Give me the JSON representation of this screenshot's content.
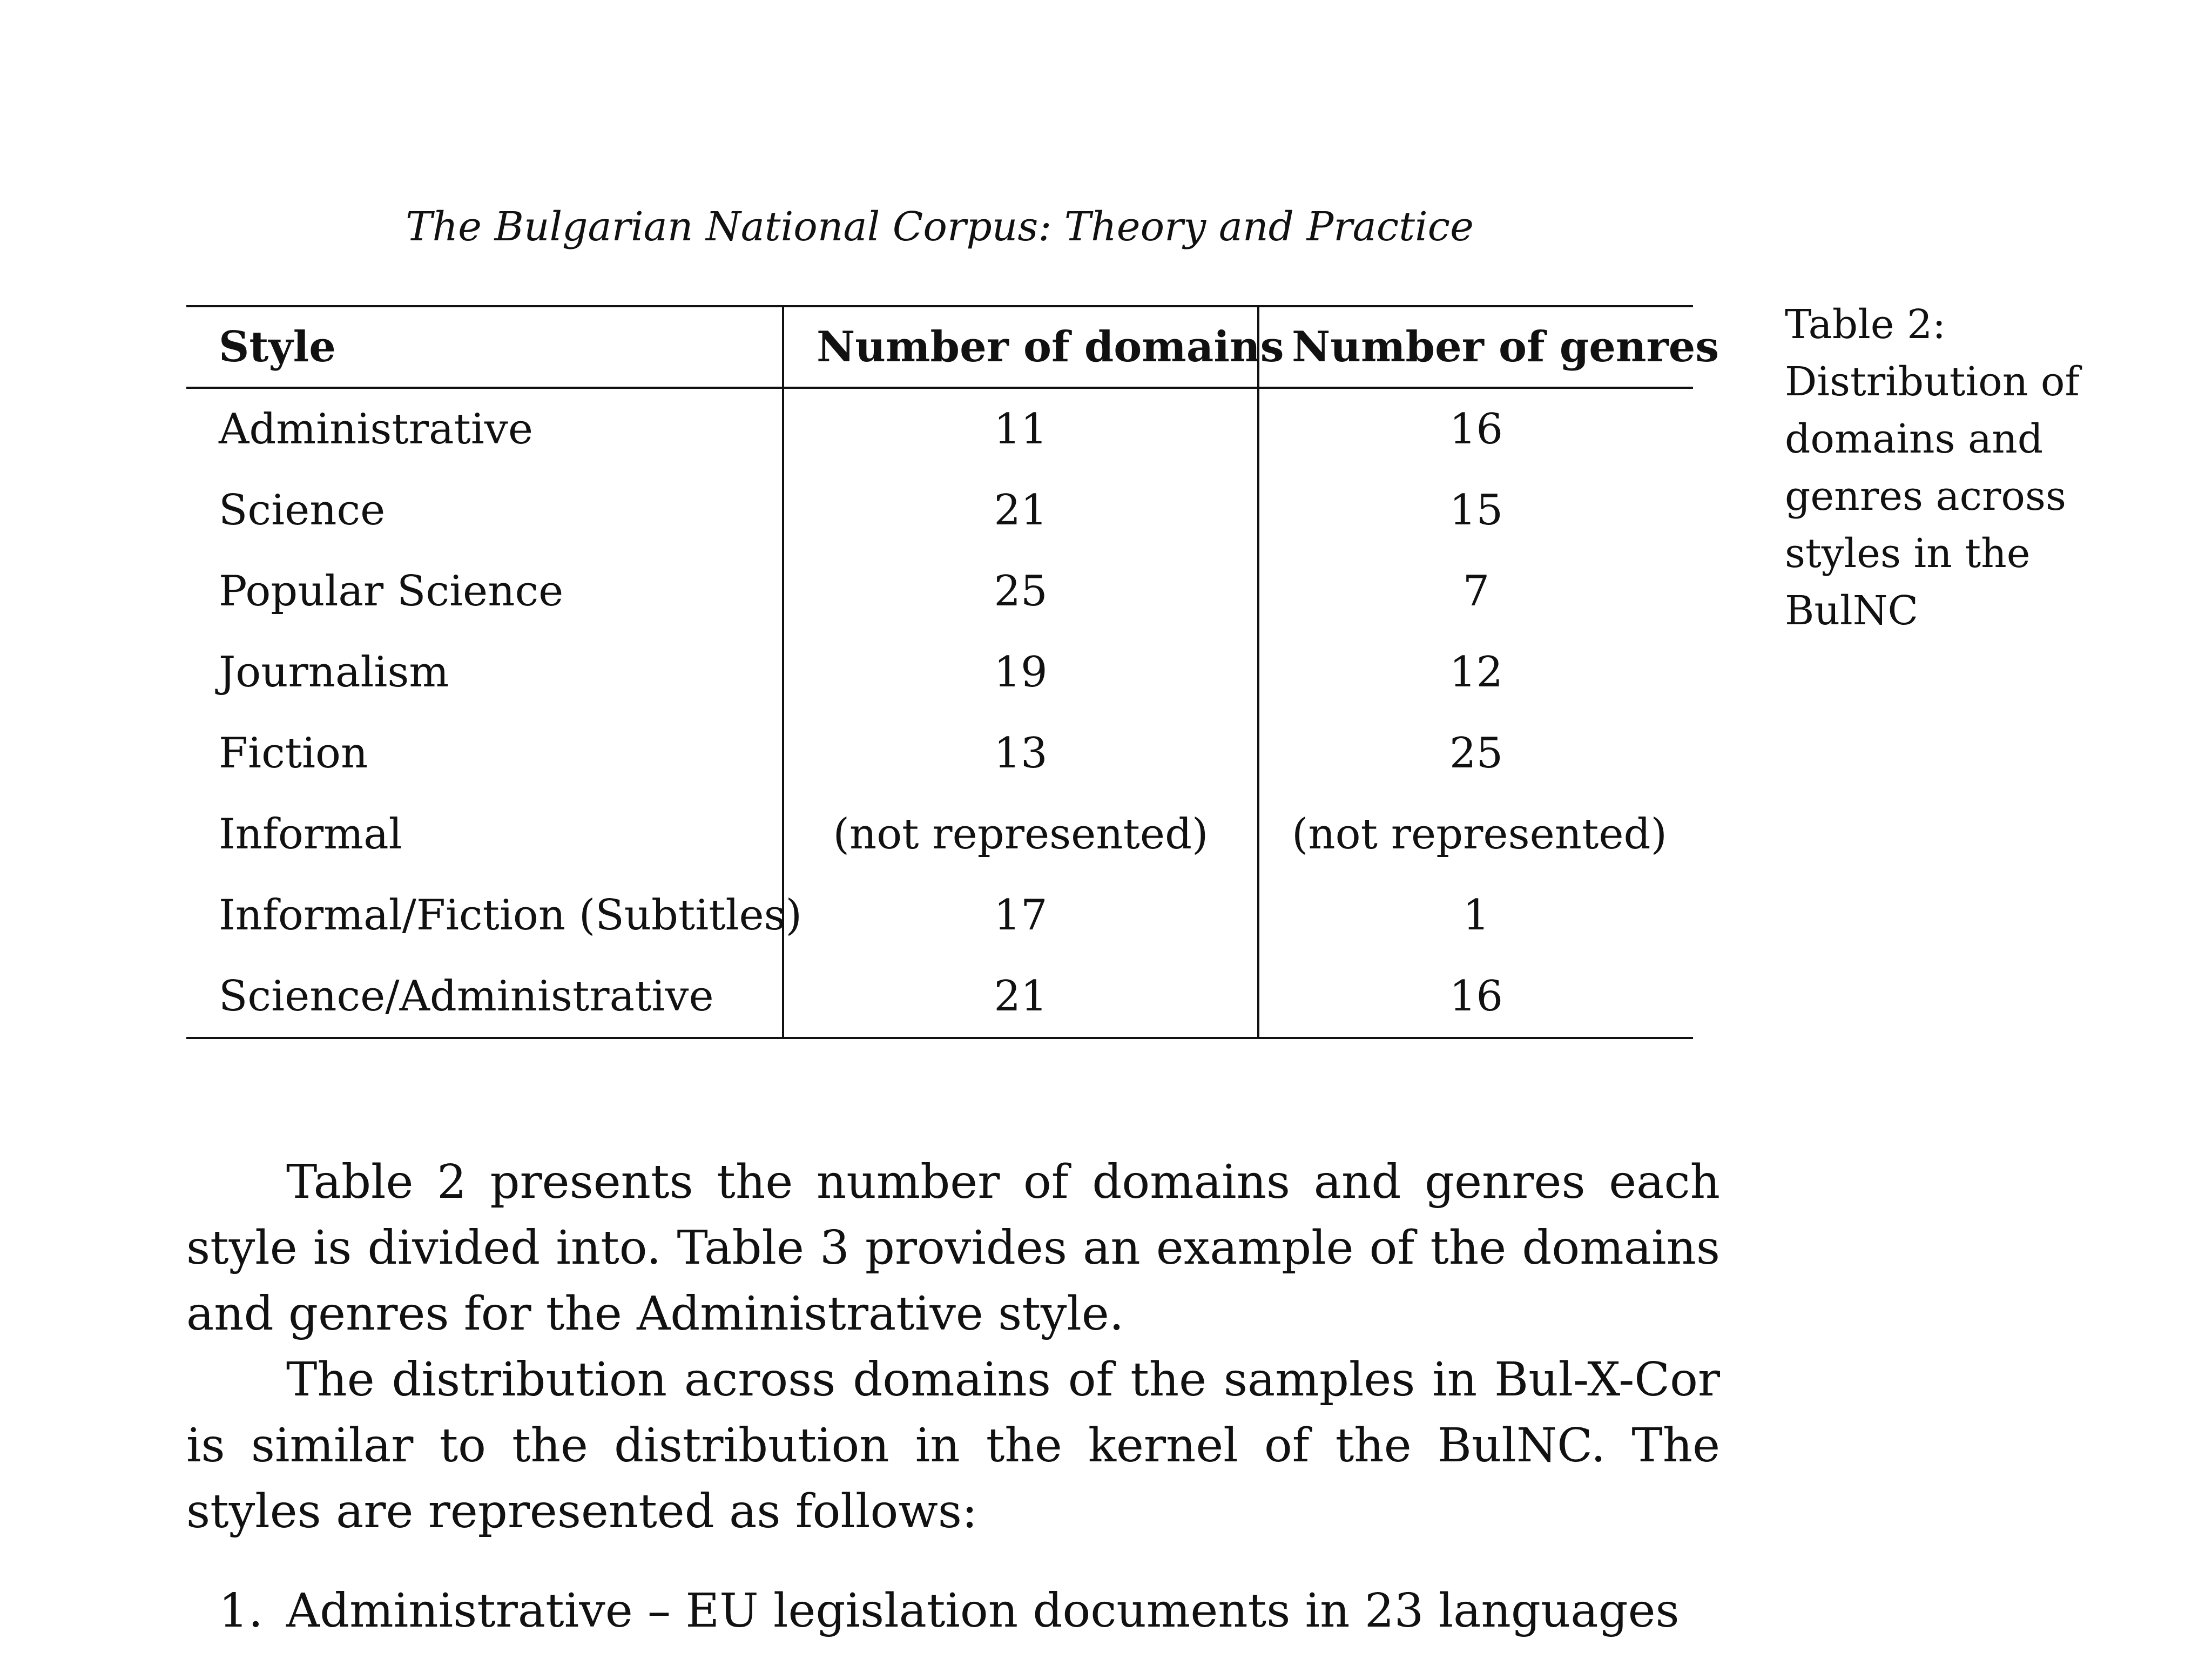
{
  "header": {
    "running_title": "The Bulgarian National Corpus: Theory and Practice"
  },
  "table": {
    "columns": [
      "Style",
      "Number of domains",
      "Number of genres"
    ],
    "rows": [
      {
        "style": "Administrative",
        "domains": "11",
        "genres": "16"
      },
      {
        "style": "Science",
        "domains": "21",
        "genres": "15"
      },
      {
        "style": "Popular Science",
        "domains": "25",
        "genres": "7"
      },
      {
        "style": "Journalism",
        "domains": "19",
        "genres": "12"
      },
      {
        "style": "Fiction",
        "domains": "13",
        "genres": "25"
      },
      {
        "style": "Informal",
        "domains": "(not represented)",
        "genres": "(not represented)"
      },
      {
        "style": "Informal/Fiction (Subtitles)",
        "domains": "17",
        "genres": "1"
      },
      {
        "style": "Science/Administrative",
        "domains": "21",
        "genres": "16"
      }
    ]
  },
  "caption": {
    "label": "Table 2:",
    "text": "Distribution of domains and genres across styles in the BulNC"
  },
  "body": {
    "paragraphs": [
      "Table 2 presents the number of domains and genres each style is divided into. Table 3 provides an example of the domains and genres for the Administrative style.",
      "The distribution across domains of the samples in Bul-X-Cor is similar to the distribution in the kernel of the BulNC. The styles are represented as follows:"
    ],
    "list": [
      {
        "number": "1.",
        "text": "Administrative – EU legislation documents in 23 languages"
      }
    ]
  }
}
